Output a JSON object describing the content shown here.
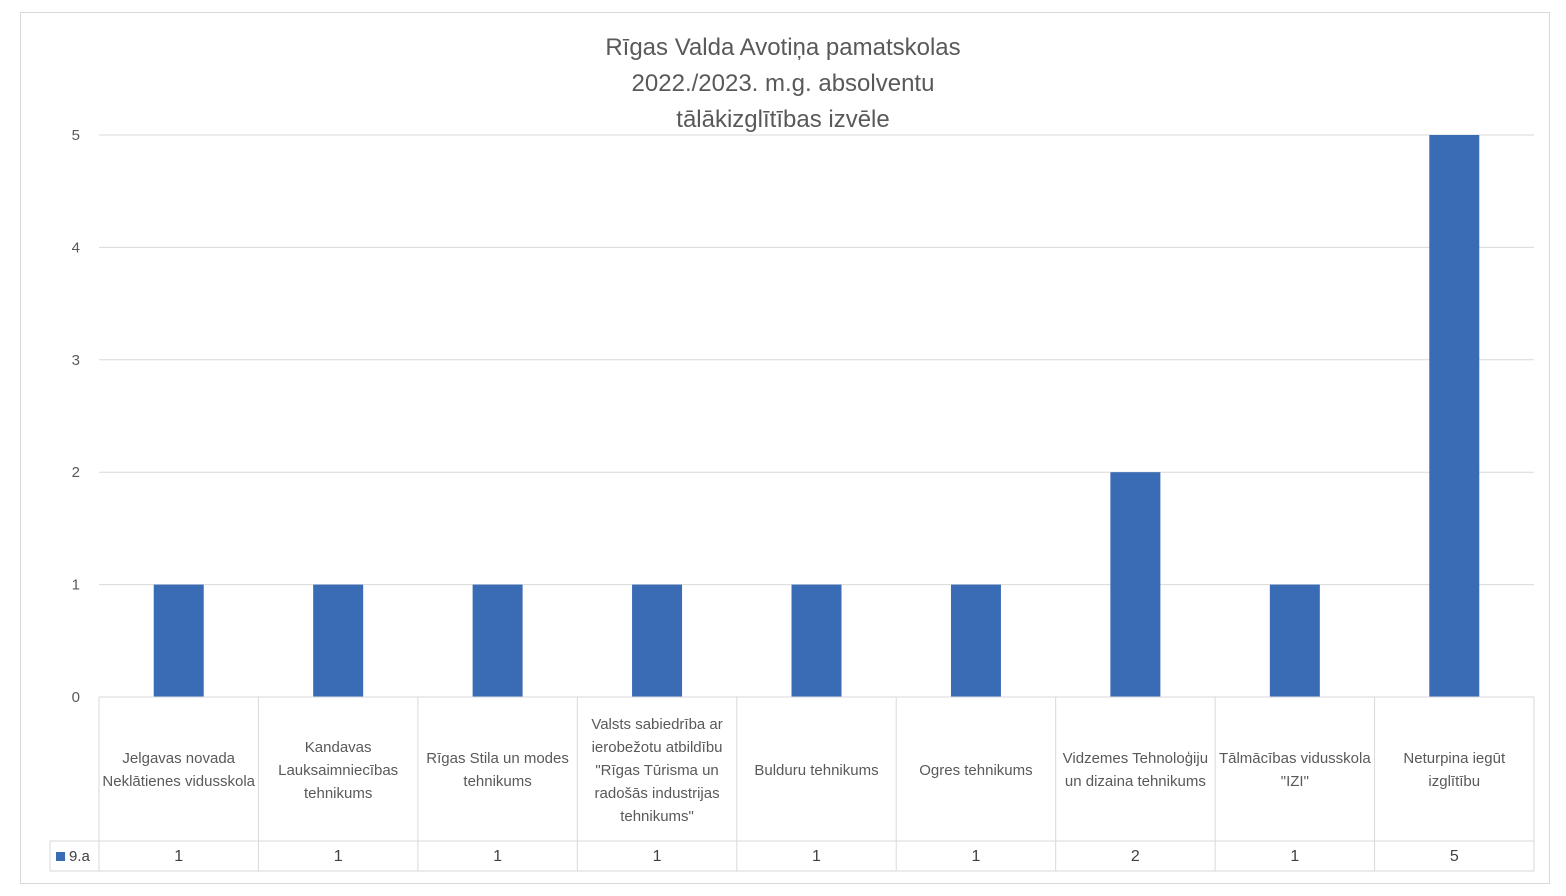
{
  "chart_data": {
    "type": "bar",
    "title": [
      "Rīgas Valda Avotiņa pamatskolas",
      "2022./2023. m.g. absolventu",
      "tālākizglītības izvēle"
    ],
    "categories": [
      "Jelgavas novada Neklātienes vidusskola",
      "Kandavas Lauksaimniecības tehnikums",
      "Rīgas Stila un modes tehnikums",
      "Valsts sabiedrība ar ierobežotu atbildību \"Rīgas Tūrisma un radošās industrijas tehnikums\"",
      "Bulduru tehnikums",
      "Ogres tehnikums",
      "Vidzemes Tehnoloģiju un dizaina tehnikums",
      "Tālmācības vidusskola \"IZI\"",
      "Neturpina iegūt izglītību"
    ],
    "series": [
      {
        "name": "9.a",
        "values": [
          1,
          1,
          1,
          1,
          1,
          1,
          2,
          1,
          5
        ],
        "color": "#3a6bb5"
      }
    ],
    "ylim": [
      0,
      5
    ],
    "yticks": [
      "0",
      "1",
      "2",
      "3",
      "4",
      "5"
    ],
    "grid": true,
    "legend": "data-table",
    "data_table": true
  }
}
